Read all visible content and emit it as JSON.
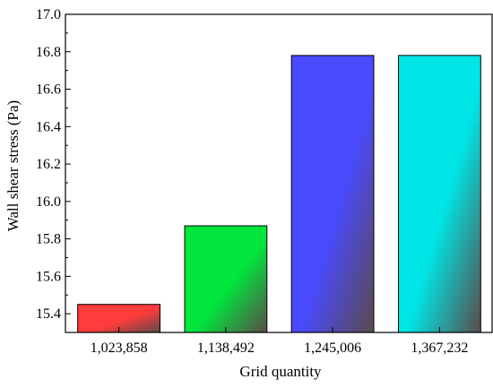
{
  "chart_data": {
    "type": "bar",
    "xlabel": "Grid quantity",
    "ylabel": "Wall shear stress (Pa)",
    "categories": [
      "1,023,858",
      "1,138,492",
      "1,245,006",
      "1,367,232"
    ],
    "values": [
      15.45,
      15.87,
      16.78,
      16.78
    ],
    "colors": [
      "#ff3b3b",
      "#00e63c",
      "#4a4aff",
      "#00e5e5"
    ],
    "ylim": [
      15.3,
      17.0
    ],
    "yticks": [
      15.4,
      15.6,
      15.8,
      16.0,
      16.2,
      16.4,
      16.6,
      16.8,
      17.0
    ],
    "ytick_labels": [
      "15.4",
      "15.6",
      "15.8",
      "16.0",
      "16.2",
      "16.4",
      "16.6",
      "16.8",
      "17.0"
    ],
    "grid": false,
    "legend": "none"
  }
}
